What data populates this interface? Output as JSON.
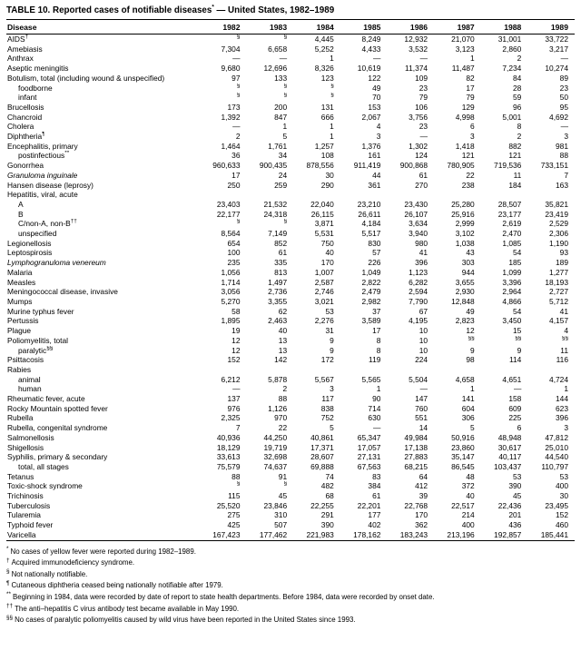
{
  "table": {
    "title": {
      "pre": "TABLE 10. Reported cases of notifiable diseases",
      "sup": "*",
      "post": " — United States, 1982–1989"
    },
    "columns": [
      "Disease",
      "1982",
      "1983",
      "1984",
      "1985",
      "1986",
      "1987",
      "1988",
      "1989"
    ],
    "rows": [
      {
        "label": "AIDS",
        "sup": "†",
        "values": [
          "§",
          "§",
          "4,445",
          "8,249",
          "12,932",
          "21,070",
          "31,001",
          "33,722"
        ]
      },
      {
        "label": "Amebiasis",
        "values": [
          "7,304",
          "6,658",
          "5,252",
          "4,433",
          "3,532",
          "3,123",
          "2,860",
          "3,217"
        ]
      },
      {
        "label": "Anthrax",
        "values": [
          "—",
          "—",
          "1",
          "—",
          "—",
          "1",
          "2",
          "—"
        ]
      },
      {
        "label": "Aseptic meningitis",
        "values": [
          "9,680",
          "12,696",
          "8,326",
          "10,619",
          "11,374",
          "11,487",
          "7,234",
          "10,274"
        ]
      },
      {
        "label": "Botulism, total (including wound & unspecified)",
        "values": [
          "97",
          "133",
          "123",
          "122",
          "109",
          "82",
          "84",
          "89"
        ]
      },
      {
        "label": "foodborne",
        "indent": 1,
        "values": [
          "§",
          "§",
          "§",
          "49",
          "23",
          "17",
          "28",
          "23"
        ]
      },
      {
        "label": "infant",
        "indent": 1,
        "values": [
          "§",
          "§",
          "§",
          "70",
          "79",
          "79",
          "59",
          "50"
        ]
      },
      {
        "label": "Brucellosis",
        "values": [
          "173",
          "200",
          "131",
          "153",
          "106",
          "129",
          "96",
          "95"
        ]
      },
      {
        "label": "Chancroid",
        "values": [
          "1,392",
          "847",
          "666",
          "2,067",
          "3,756",
          "4,998",
          "5,001",
          "4,692"
        ]
      },
      {
        "label": "Cholera",
        "values": [
          "—",
          "1",
          "1",
          "4",
          "23",
          "6",
          "8",
          "—"
        ]
      },
      {
        "label": "Diphtheria",
        "sup": "¶",
        "values": [
          "2",
          "5",
          "1",
          "3",
          "—",
          "3",
          "2",
          "3"
        ]
      },
      {
        "label": "Encephalitis, primary",
        "values": [
          "1,464",
          "1,761",
          "1,257",
          "1,376",
          "1,302",
          "1,418",
          "882",
          "981"
        ]
      },
      {
        "label": "postinfectious",
        "sup": "**",
        "indent": 1,
        "values": [
          "36",
          "34",
          "108",
          "161",
          "124",
          "121",
          "121",
          "88"
        ]
      },
      {
        "label": "Gonorrhea",
        "values": [
          "960,633",
          "900,435",
          "878,556",
          "911,419",
          "900,868",
          "780,905",
          "719,536",
          "733,151"
        ]
      },
      {
        "label": "Granuloma inguinale",
        "italic": true,
        "values": [
          "17",
          "24",
          "30",
          "44",
          "61",
          "22",
          "11",
          "7"
        ]
      },
      {
        "label": "Hansen disease (leprosy)",
        "values": [
          "250",
          "259",
          "290",
          "361",
          "270",
          "238",
          "184",
          "163"
        ]
      },
      {
        "label": "Hepatitis, viral, acute",
        "values": [
          "",
          "",
          "",
          "",
          "",
          "",
          "",
          ""
        ]
      },
      {
        "label": "A",
        "indent": 1,
        "values": [
          "23,403",
          "21,532",
          "22,040",
          "23,210",
          "23,430",
          "25,280",
          "28,507",
          "35,821"
        ]
      },
      {
        "label": "B",
        "indent": 1,
        "values": [
          "22,177",
          "24,318",
          "26,115",
          "26,611",
          "26,107",
          "25,916",
          "23,177",
          "23,419"
        ]
      },
      {
        "label": "C/non-A, non-B",
        "sup": "††",
        "indent": 1,
        "values": [
          "§",
          "§",
          "3,871",
          "4,184",
          "3,634",
          "2,999",
          "2,619",
          "2,529"
        ]
      },
      {
        "label": "unspecified",
        "indent": 1,
        "values": [
          "8,564",
          "7,149",
          "5,531",
          "5,517",
          "3,940",
          "3,102",
          "2,470",
          "2,306"
        ]
      },
      {
        "label": "Legionellosis",
        "values": [
          "654",
          "852",
          "750",
          "830",
          "980",
          "1,038",
          "1,085",
          "1,190"
        ]
      },
      {
        "label": "Leptospirosis",
        "values": [
          "100",
          "61",
          "40",
          "57",
          "41",
          "43",
          "54",
          "93"
        ]
      },
      {
        "label": "Lymphogranuloma venereum",
        "italic": true,
        "values": [
          "235",
          "335",
          "170",
          "226",
          "396",
          "303",
          "185",
          "189"
        ]
      },
      {
        "label": "Malaria",
        "values": [
          "1,056",
          "813",
          "1,007",
          "1,049",
          "1,123",
          "944",
          "1,099",
          "1,277"
        ]
      },
      {
        "label": "Measles",
        "values": [
          "1,714",
          "1,497",
          "2,587",
          "2,822",
          "6,282",
          "3,655",
          "3,396",
          "18,193"
        ]
      },
      {
        "label": "Meningococcal disease, invasive",
        "values": [
          "3,056",
          "2,736",
          "2,746",
          "2,479",
          "2,594",
          "2,930",
          "2,964",
          "2,727"
        ]
      },
      {
        "label": "Mumps",
        "values": [
          "5,270",
          "3,355",
          "3,021",
          "2,982",
          "7,790",
          "12,848",
          "4,866",
          "5,712"
        ]
      },
      {
        "label": "Murine typhus fever",
        "values": [
          "58",
          "62",
          "53",
          "37",
          "67",
          "49",
          "54",
          "41"
        ]
      },
      {
        "label": "Pertussis",
        "values": [
          "1,895",
          "2,463",
          "2,276",
          "3,589",
          "4,195",
          "2,823",
          "3,450",
          "4,157"
        ]
      },
      {
        "label": "Plague",
        "values": [
          "19",
          "40",
          "31",
          "17",
          "10",
          "12",
          "15",
          "4"
        ]
      },
      {
        "label": "Poliomyelitis, total",
        "values": [
          "12",
          "13",
          "9",
          "8",
          "10",
          "§§",
          "§§",
          "§§"
        ]
      },
      {
        "label": "paralytic",
        "sup": "§§",
        "indent": 1,
        "values": [
          "12",
          "13",
          "9",
          "8",
          "10",
          "9",
          "9",
          "11"
        ]
      },
      {
        "label": "Psittacosis",
        "values": [
          "152",
          "142",
          "172",
          "119",
          "224",
          "98",
          "114",
          "116"
        ]
      },
      {
        "label": "Rabies",
        "values": [
          "",
          "",
          "",
          "",
          "",
          "",
          "",
          ""
        ]
      },
      {
        "label": "animal",
        "indent": 1,
        "values": [
          "6,212",
          "5,878",
          "5,567",
          "5,565",
          "5,504",
          "4,658",
          "4,651",
          "4,724"
        ]
      },
      {
        "label": "human",
        "indent": 1,
        "values": [
          "—",
          "2",
          "3",
          "1",
          "—",
          "1",
          "—",
          "1"
        ]
      },
      {
        "label": "Rheumatic fever, acute",
        "values": [
          "137",
          "88",
          "117",
          "90",
          "147",
          "141",
          "158",
          "144"
        ]
      },
      {
        "label": "Rocky Mountain spotted fever",
        "values": [
          "976",
          "1,126",
          "838",
          "714",
          "760",
          "604",
          "609",
          "623"
        ]
      },
      {
        "label": "Rubella",
        "values": [
          "2,325",
          "970",
          "752",
          "630",
          "551",
          "306",
          "225",
          "396"
        ]
      },
      {
        "label": "Rubella, congenital syndrome",
        "values": [
          "7",
          "22",
          "5",
          "—",
          "14",
          "5",
          "6",
          "3"
        ]
      },
      {
        "label": "Salmonellosis",
        "values": [
          "40,936",
          "44,250",
          "40,861",
          "65,347",
          "49,984",
          "50,916",
          "48,948",
          "47,812"
        ]
      },
      {
        "label": "Shigellosis",
        "values": [
          "18,129",
          "19,719",
          "17,371",
          "17,057",
          "17,138",
          "23,860",
          "30,617",
          "25,010"
        ]
      },
      {
        "label": "Syphilis, primary & secondary",
        "values": [
          "33,613",
          "32,698",
          "28,607",
          "27,131",
          "27,883",
          "35,147",
          "40,117",
          "44,540"
        ]
      },
      {
        "label": "total, all stages",
        "indent": 1,
        "values": [
          "75,579",
          "74,637",
          "69,888",
          "67,563",
          "68,215",
          "86,545",
          "103,437",
          "110,797"
        ]
      },
      {
        "label": "Tetanus",
        "values": [
          "88",
          "91",
          "74",
          "83",
          "64",
          "48",
          "53",
          "53"
        ]
      },
      {
        "label": "Toxic-shock syndrome",
        "values": [
          "§",
          "§",
          "482",
          "384",
          "412",
          "372",
          "390",
          "400"
        ]
      },
      {
        "label": "Trichinosis",
        "values": [
          "115",
          "45",
          "68",
          "61",
          "39",
          "40",
          "45",
          "30"
        ]
      },
      {
        "label": "Tuberculosis",
        "values": [
          "25,520",
          "23,846",
          "22,255",
          "22,201",
          "22,768",
          "22,517",
          "22,436",
          "23,495"
        ]
      },
      {
        "label": "Tularemia",
        "values": [
          "275",
          "310",
          "291",
          "177",
          "170",
          "214",
          "201",
          "152"
        ]
      },
      {
        "label": "Typhoid fever",
        "values": [
          "425",
          "507",
          "390",
          "402",
          "362",
          "400",
          "436",
          "460"
        ]
      },
      {
        "label": "Varicella",
        "values": [
          "167,423",
          "177,462",
          "221,983",
          "178,162",
          "183,243",
          "213,196",
          "192,857",
          "185,441"
        ]
      }
    ],
    "footnotes": [
      {
        "marker": "*",
        "text": "No cases of yellow fever were reported during 1982–1989."
      },
      {
        "marker": "†",
        "text": "Acquired immunodeficiency syndrome."
      },
      {
        "marker": "§",
        "text": "Not nationally notifiable."
      },
      {
        "marker": "¶",
        "text": "Cutaneous diphtheria ceased being nationally notifiable after 1979."
      },
      {
        "marker": "**",
        "text": "Beginning in 1984, data were recorded by date of report to state health departments. Before 1984, data were recorded by onset date."
      },
      {
        "marker": "††",
        "text": "The anti–hepatitis C virus antibody test became available in May 1990."
      },
      {
        "marker": "§§",
        "text": "No cases of paralytic poliomyelitis caused by wild virus have been reported in the United States since 1993."
      }
    ]
  }
}
